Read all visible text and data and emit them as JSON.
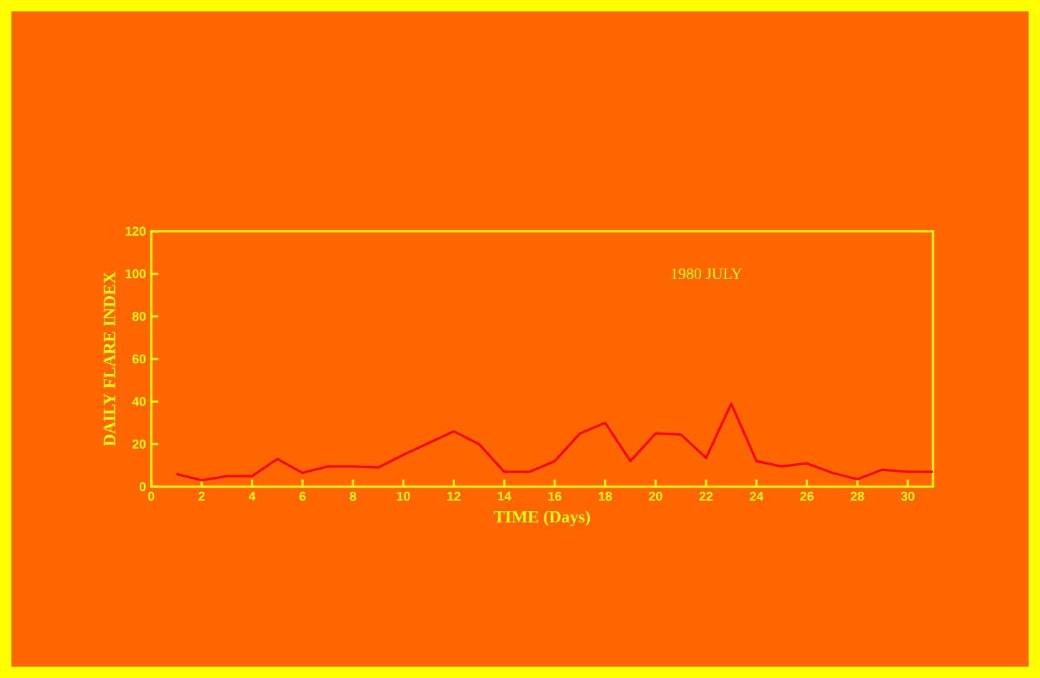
{
  "chart_data": {
    "type": "line",
    "title": "1980  JULY",
    "xlabel": "TIME (Days)",
    "ylabel": "DAILY FLARE INDEX",
    "x": [
      1,
      2,
      3,
      4,
      5,
      6,
      7,
      8,
      9,
      10,
      11,
      12,
      13,
      14,
      15,
      16,
      17,
      18,
      19,
      20,
      21,
      22,
      23,
      24,
      25,
      26,
      27,
      28,
      29,
      30,
      31
    ],
    "series": [
      {
        "color": "#ff0000",
        "values": [
          6,
          3,
          5,
          5,
          13,
          6.5,
          9.5,
          9.5,
          9,
          15,
          20.5,
          26,
          20,
          7,
          7,
          12,
          25,
          30,
          12,
          25,
          24.5,
          13.5,
          39,
          12,
          9.5,
          11,
          6.5,
          3.5,
          8,
          7,
          7
        ]
      }
    ],
    "xlim": [
      0,
      31
    ],
    "ylim": [
      0,
      120
    ],
    "xticks": [
      0,
      2,
      4,
      6,
      8,
      10,
      12,
      14,
      16,
      18,
      20,
      22,
      24,
      26,
      28,
      30
    ],
    "yticks": [
      0,
      20,
      40,
      60,
      80,
      100,
      120
    ],
    "grid": false,
    "marker": "none",
    "line_style": "solid"
  }
}
